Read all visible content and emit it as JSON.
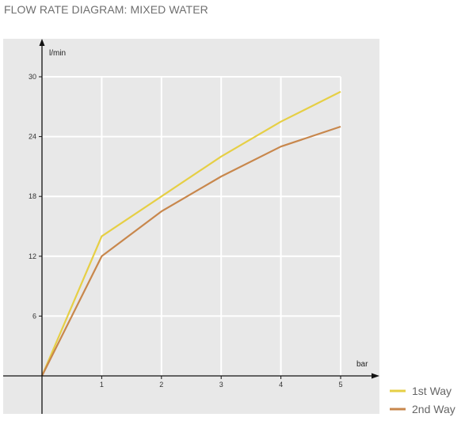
{
  "title": "FLOW RATE DIAGRAM: MIXED WATER",
  "chart_data": {
    "type": "line",
    "x": [
      0,
      1,
      2,
      3,
      4,
      5
    ],
    "xlabel": "bar",
    "ylabel": "l/min",
    "xlim": [
      0,
      5
    ],
    "ylim": [
      0,
      30
    ],
    "x_ticks": [
      "1",
      "2",
      "3",
      "4",
      "5"
    ],
    "y_ticks": [
      "6",
      "12",
      "18",
      "24",
      "30"
    ],
    "grid": true,
    "legend_position": "bottom-right",
    "series": [
      {
        "name": "1st Way",
        "color": "#e6cf45",
        "values": [
          0,
          14,
          18,
          22,
          25.5,
          28.5
        ]
      },
      {
        "name": "2nd Way",
        "color": "#c8874c",
        "values": [
          0,
          12,
          16.5,
          20,
          23,
          25
        ]
      }
    ]
  },
  "colors": {
    "plot_background": "#e8e8e8",
    "grid": "#ffffff",
    "axis": "#111111"
  }
}
